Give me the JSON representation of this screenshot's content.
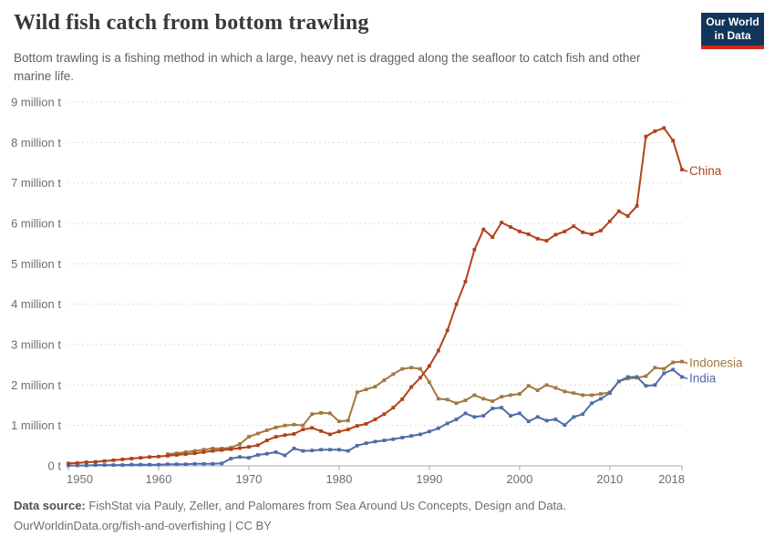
{
  "header": {
    "title": "Wild fish catch from bottom trawling",
    "subtitle": "Bottom trawling is a fishing method in which a large, heavy net is dragged along the seafloor to catch fish and other marine life.",
    "logo": {
      "line1": "Our World",
      "line2": "in Data",
      "bg": "#12355b",
      "accent": "#cf2a1b"
    }
  },
  "footer": {
    "source_label": "Data source:",
    "source_text": "FishStat via Pauly, Zeller, and Palomares from Sea Around Us Concepts, Design and Data.",
    "link_text": "OurWorldinData.org/fish-and-overfishing",
    "separator": "|",
    "license": "CC BY"
  },
  "chart_data": {
    "type": "line",
    "unit": "million t",
    "xlim": [
      1950,
      2018
    ],
    "ylim": [
      0,
      9
    ],
    "grid": "horizontal-dashed",
    "legend_position": "line-end-labels",
    "xticks": [
      1950,
      1960,
      1970,
      1980,
      1990,
      2000,
      2010,
      2018
    ],
    "yticks": [
      {
        "value": 0,
        "label": "0 t"
      },
      {
        "value": 1,
        "label": "1 million t"
      },
      {
        "value": 2,
        "label": "2 million t"
      },
      {
        "value": 3,
        "label": "3 million t"
      },
      {
        "value": 4,
        "label": "4 million t"
      },
      {
        "value": 5,
        "label": "5 million t"
      },
      {
        "value": 6,
        "label": "6 million t"
      },
      {
        "value": 7,
        "label": "7 million t"
      },
      {
        "value": 8,
        "label": "8 million t"
      },
      {
        "value": 9,
        "label": "9 million t"
      }
    ],
    "x": [
      1950,
      1951,
      1952,
      1953,
      1954,
      1955,
      1956,
      1957,
      1958,
      1959,
      1960,
      1961,
      1962,
      1963,
      1964,
      1965,
      1966,
      1967,
      1968,
      1969,
      1970,
      1971,
      1972,
      1973,
      1974,
      1975,
      1976,
      1977,
      1978,
      1979,
      1980,
      1981,
      1982,
      1983,
      1984,
      1985,
      1986,
      1987,
      1988,
      1989,
      1990,
      1991,
      1992,
      1993,
      1994,
      1995,
      1996,
      1997,
      1998,
      1999,
      2000,
      2001,
      2002,
      2003,
      2004,
      2005,
      2006,
      2007,
      2008,
      2009,
      2010,
      2011,
      2012,
      2013,
      2014,
      2015,
      2016,
      2017,
      2018
    ],
    "series": [
      {
        "name": "Indonesia",
        "color": "#a1793f",
        "values": [
          null,
          null,
          null,
          null,
          null,
          null,
          null,
          null,
          null,
          null,
          null,
          0.29,
          0.31,
          0.34,
          0.37,
          0.4,
          0.43,
          0.43,
          0.45,
          0.54,
          0.72,
          0.8,
          0.88,
          0.95,
          1.0,
          1.02,
          1.0,
          1.28,
          1.31,
          1.3,
          1.1,
          1.12,
          1.82,
          1.89,
          1.96,
          2.12,
          2.27,
          2.4,
          2.43,
          2.4,
          2.07,
          1.66,
          1.64,
          1.55,
          1.62,
          1.75,
          1.66,
          1.6,
          1.71,
          1.75,
          1.78,
          1.98,
          1.87,
          2.0,
          1.93,
          1.84,
          1.8,
          1.75,
          1.75,
          1.78,
          1.82,
          2.09,
          2.16,
          2.18,
          2.22,
          2.43,
          2.4,
          2.56,
          2.58
        ]
      },
      {
        "name": "India",
        "color": "#4d6caa",
        "values": [
          0.01,
          0.01,
          0.01,
          0.02,
          0.02,
          0.02,
          0.02,
          0.03,
          0.03,
          0.03,
          0.03,
          0.04,
          0.04,
          0.04,
          0.05,
          0.05,
          0.05,
          0.06,
          0.18,
          0.22,
          0.2,
          0.27,
          0.3,
          0.34,
          0.26,
          0.43,
          0.37,
          0.38,
          0.4,
          0.4,
          0.4,
          0.37,
          0.5,
          0.56,
          0.6,
          0.63,
          0.66,
          0.7,
          0.74,
          0.78,
          0.85,
          0.93,
          1.05,
          1.15,
          1.3,
          1.21,
          1.24,
          1.42,
          1.44,
          1.24,
          1.3,
          1.1,
          1.21,
          1.12,
          1.15,
          1.01,
          1.21,
          1.28,
          1.55,
          1.66,
          1.8,
          2.09,
          2.2,
          2.2,
          1.98,
          2.0,
          2.29,
          2.38,
          2.2
        ]
      },
      {
        "name": "China",
        "color": "#b0421a",
        "values": [
          0.06,
          0.07,
          0.09,
          0.1,
          0.12,
          0.14,
          0.16,
          0.18,
          0.2,
          0.22,
          0.23,
          0.25,
          0.27,
          0.29,
          0.31,
          0.34,
          0.37,
          0.39,
          0.41,
          0.44,
          0.47,
          0.51,
          0.63,
          0.72,
          0.76,
          0.79,
          0.9,
          0.94,
          0.86,
          0.78,
          0.85,
          0.9,
          0.99,
          1.04,
          1.15,
          1.28,
          1.44,
          1.65,
          1.95,
          2.18,
          2.47,
          2.85,
          3.35,
          4.0,
          4.56,
          5.35,
          5.85,
          5.66,
          6.02,
          5.91,
          5.8,
          5.73,
          5.62,
          5.57,
          5.72,
          5.8,
          5.93,
          5.78,
          5.73,
          5.82,
          6.05,
          6.3,
          6.18,
          6.43,
          8.15,
          8.28,
          8.36,
          8.05,
          7.33
        ]
      }
    ]
  }
}
